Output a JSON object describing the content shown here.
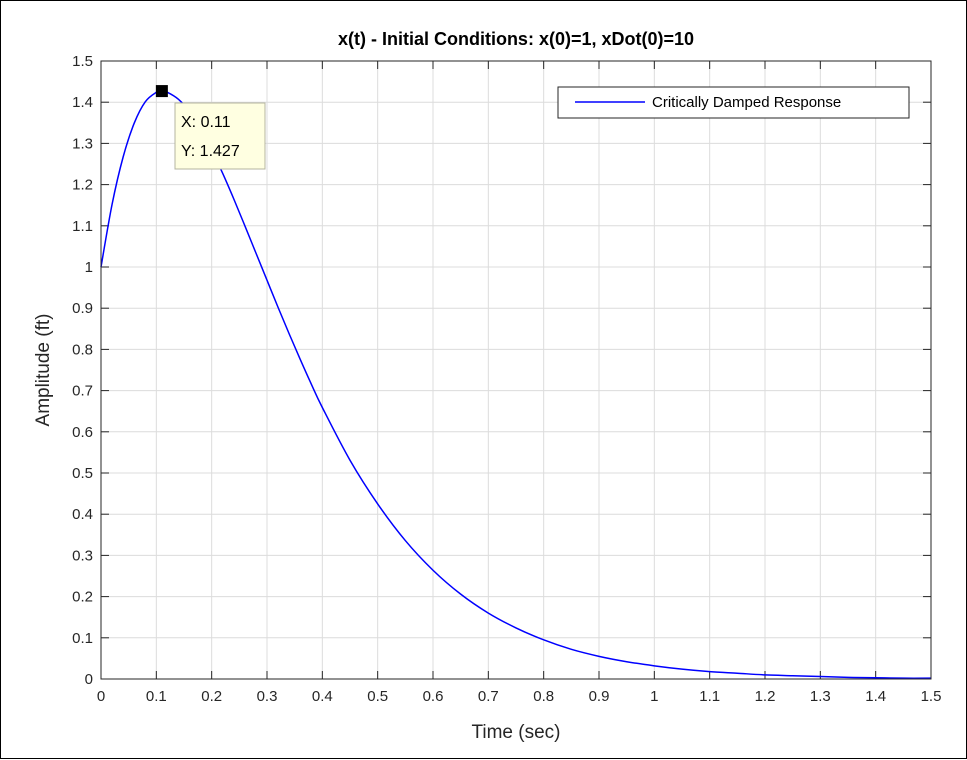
{
  "chart_data": {
    "type": "line",
    "title": "x(t) - Initial Conditions: x(0)=1, xDot(0)=10",
    "xlabel": "Time (sec)",
    "ylabel": "Amplitude (ft)",
    "xlim": [
      0,
      1.5
    ],
    "ylim": [
      0,
      1.5
    ],
    "xticks": [
      "0",
      "0.1",
      "0.2",
      "0.3",
      "0.4",
      "0.5",
      "0.6",
      "0.7",
      "0.8",
      "0.9",
      "1",
      "1.1",
      "1.2",
      "1.3",
      "1.4",
      "1.5"
    ],
    "yticks": [
      "0",
      "0.1",
      "0.2",
      "0.3",
      "0.4",
      "0.5",
      "0.6",
      "0.7",
      "0.8",
      "0.9",
      "1",
      "1.1",
      "1.2",
      "1.3",
      "1.4",
      "1.5"
    ],
    "grid": true,
    "legend_position": "top-right",
    "series": [
      {
        "name": "Critically Damped Response",
        "color": "#0000ff",
        "x": [
          0,
          0.02,
          0.04,
          0.06,
          0.08,
          0.1,
          0.11,
          0.12,
          0.14,
          0.16,
          0.18,
          0.2,
          0.22,
          0.24,
          0.26,
          0.28,
          0.3,
          0.32,
          0.34,
          0.36,
          0.38,
          0.4,
          0.45,
          0.5,
          0.55,
          0.6,
          0.65,
          0.7,
          0.75,
          0.8,
          0.85,
          0.9,
          0.95,
          1.0,
          1.05,
          1.1,
          1.15,
          1.2,
          1.25,
          1.3,
          1.35,
          1.4,
          1.45,
          1.5
        ],
        "y": [
          1.0,
          1.152,
          1.267,
          1.349,
          1.401,
          1.424,
          1.427,
          1.424,
          1.407,
          1.377,
          1.335,
          1.284,
          1.227,
          1.165,
          1.1,
          1.034,
          0.968,
          0.902,
          0.838,
          0.776,
          0.716,
          0.659,
          0.531,
          0.425,
          0.336,
          0.264,
          0.206,
          0.16,
          0.124,
          0.095,
          0.072,
          0.055,
          0.042,
          0.032,
          0.024,
          0.018,
          0.014,
          0.01,
          0.008,
          0.006,
          0.004,
          0.003,
          0.002,
          0.002
        ]
      }
    ],
    "datatip": {
      "x": 0.11,
      "y": 1.427,
      "x_text": "X: 0.11",
      "y_text": "Y: 1.427"
    }
  }
}
